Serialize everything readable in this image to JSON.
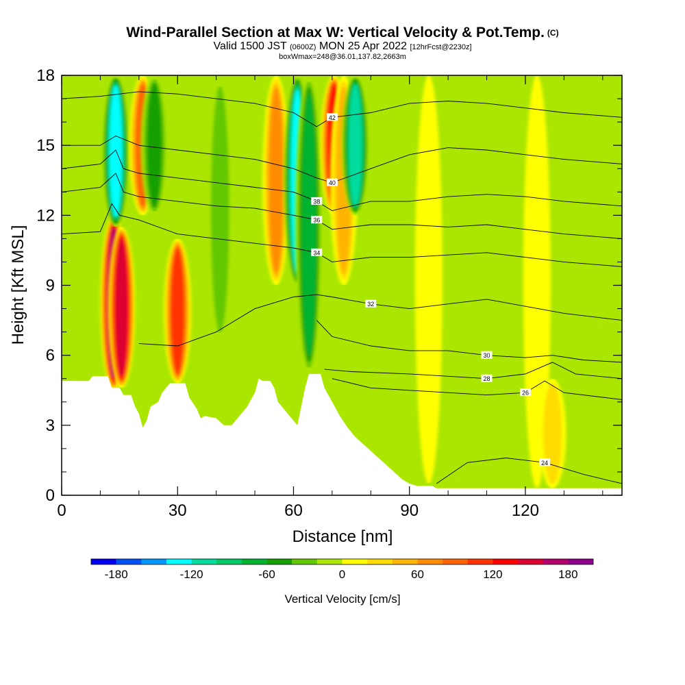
{
  "header": {
    "title": "Wind-Parallel Section at Max W: Vertical Velocity & Pot.Temp.",
    "copyright_mark": "(C)",
    "valid_prefix": "Valid 1500 JST",
    "valid_utc": "(0600Z)",
    "valid_date": "MON 25 Apr 2022",
    "forecast_info": "[12hrFcst@2230z]",
    "box_info": "boxWmax=248@36.01,137.82,2663m"
  },
  "chart_data": {
    "type": "heatmap",
    "xlabel": "Distance [nm]",
    "ylabel": "Height [Kft MSL]",
    "xlim": [
      0,
      145
    ],
    "ylim": [
      0,
      18
    ],
    "x_ticks": [
      0,
      30,
      60,
      90,
      120
    ],
    "y_ticks": [
      0,
      3,
      6,
      9,
      12,
      15,
      18
    ],
    "colorbar": {
      "label": "Vertical Velocity [cm/s]",
      "min": -200,
      "max": 200,
      "step": 20,
      "tick_labels": [
        -180,
        -120,
        -60,
        0,
        60,
        120,
        180
      ],
      "colors": [
        "#0000ee",
        "#0050f5",
        "#0096ff",
        "#00ffff",
        "#00dca0",
        "#00c864",
        "#00b432",
        "#14a000",
        "#64c800",
        "#aae600",
        "#ffff00",
        "#ffdc00",
        "#ffb400",
        "#ff8c00",
        "#ff6400",
        "#ff3200",
        "#ff0000",
        "#dc0032",
        "#b4006e",
        "#8c008c"
      ]
    },
    "terrain": [
      [
        0,
        4.9
      ],
      [
        7,
        4.9
      ],
      [
        8,
        5.1
      ],
      [
        12,
        5.1
      ],
      [
        13,
        4.6
      ],
      [
        15,
        4.6
      ],
      [
        16,
        4.3
      ],
      [
        18,
        4.3
      ],
      [
        19,
        3.8
      ],
      [
        20,
        3.5
      ],
      [
        21,
        2.9
      ],
      [
        22,
        3.2
      ],
      [
        23,
        3.8
      ],
      [
        25,
        4.0
      ],
      [
        26,
        4.4
      ],
      [
        28,
        4.8
      ],
      [
        30,
        4.8
      ],
      [
        32,
        4.8
      ],
      [
        33,
        4.2
      ],
      [
        35,
        3.7
      ],
      [
        36,
        3.3
      ],
      [
        37,
        3.4
      ],
      [
        40,
        3.3
      ],
      [
        42,
        3.0
      ],
      [
        44,
        3.0
      ],
      [
        46,
        3.4
      ],
      [
        48,
        3.8
      ],
      [
        50,
        4.4
      ],
      [
        51,
        5.0
      ],
      [
        52,
        4.9
      ],
      [
        54,
        4.9
      ],
      [
        55,
        4.6
      ],
      [
        56,
        4.0
      ],
      [
        58,
        3.6
      ],
      [
        59,
        3.4
      ],
      [
        60,
        3.2
      ],
      [
        61,
        3.0
      ],
      [
        62,
        3.8
      ],
      [
        63,
        4.6
      ],
      [
        64,
        5.2
      ],
      [
        67,
        5.2
      ],
      [
        68,
        4.6
      ],
      [
        70,
        4.0
      ],
      [
        72,
        3.4
      ],
      [
        74,
        2.9
      ],
      [
        76,
        2.5
      ],
      [
        78,
        2.2
      ],
      [
        80,
        1.9
      ],
      [
        82,
        1.6
      ],
      [
        84,
        1.3
      ],
      [
        86,
        1.0
      ],
      [
        88,
        0.7
      ],
      [
        90,
        0.5
      ],
      [
        92,
        0.4
      ],
      [
        96,
        0.4
      ],
      [
        97,
        0.3
      ],
      [
        145,
        0.3
      ]
    ],
    "w_bands": [
      {
        "x": 13.5,
        "y": [
          4.5,
          12.0
        ],
        "w": 180
      },
      {
        "x": 15.5,
        "y": [
          4.6,
          11.5
        ],
        "w": 160
      },
      {
        "x": 30,
        "y": [
          4.8,
          11.0
        ],
        "w": 120
      },
      {
        "x": 14,
        "y": [
          11.5,
          18.0
        ],
        "w": -130
      },
      {
        "x": 21,
        "y": [
          12.0,
          18.0
        ],
        "w": 90
      },
      {
        "x": 24,
        "y": [
          12.0,
          18.0
        ],
        "w": -60
      },
      {
        "x": 41,
        "y": [
          6.5,
          18.0
        ],
        "w": -40
      },
      {
        "x": 55.5,
        "y": [
          9.0,
          18.0
        ],
        "w": 80
      },
      {
        "x": 61,
        "y": [
          9.0,
          18.0
        ],
        "w": -140
      },
      {
        "x": 64,
        "y": [
          5.2,
          18.0
        ],
        "w": -80
      },
      {
        "x": 70.5,
        "y": [
          12.0,
          18.0
        ],
        "w": 140
      },
      {
        "x": 73,
        "y": [
          9.0,
          18.0
        ],
        "w": 60
      },
      {
        "x": 76,
        "y": [
          12.0,
          18.0
        ],
        "w": -110
      },
      {
        "x": 95,
        "y": [
          0.5,
          18.0
        ],
        "w": 20
      },
      {
        "x": 123,
        "y": [
          0.3,
          18.0
        ],
        "w": 20
      },
      {
        "x": 127,
        "y": [
          0.3,
          5.0
        ],
        "w": 40
      }
    ],
    "isentropes": [
      {
        "label": "24",
        "x": [
          97,
          105,
          115,
          125,
          135,
          145
        ],
        "y": [
          0.5,
          1.4,
          1.6,
          1.4,
          0.9,
          0.5
        ]
      },
      {
        "label": "26",
        "x": [
          70,
          80,
          90,
          100,
          110,
          120,
          125,
          130,
          140,
          145
        ],
        "y": [
          5.0,
          4.6,
          4.5,
          4.4,
          4.3,
          4.4,
          4.9,
          4.4,
          4.2,
          4.1
        ]
      },
      {
        "label": "28",
        "x": [
          68,
          75,
          90,
          100,
          110,
          120,
          127,
          133,
          145
        ],
        "y": [
          5.4,
          5.3,
          5.2,
          5.1,
          5.0,
          5.2,
          5.7,
          5.2,
          5.0
        ]
      },
      {
        "label": "30",
        "x": [
          66,
          70,
          80,
          90,
          100,
          110,
          120,
          127,
          135,
          145
        ],
        "y": [
          7.5,
          6.8,
          6.4,
          6.2,
          6.2,
          6.0,
          5.9,
          6.0,
          5.8,
          5.7
        ]
      },
      {
        "label": "32",
        "x": [
          20,
          30,
          40,
          50,
          60,
          66,
          70,
          80,
          90,
          100,
          110,
          120,
          130,
          145
        ],
        "y": [
          6.5,
          6.4,
          7.0,
          8.0,
          8.5,
          8.6,
          8.5,
          8.2,
          8.0,
          8.2,
          8.4,
          8.1,
          7.8,
          7.5
        ]
      },
      {
        "label": "34",
        "x": [
          0,
          10,
          13,
          15,
          20,
          30,
          40,
          50,
          60,
          66,
          70,
          80,
          90,
          100,
          110,
          120,
          130,
          145
        ],
        "y": [
          11.2,
          11.3,
          12.5,
          12.0,
          11.8,
          11.2,
          11.0,
          10.8,
          10.6,
          10.4,
          10.0,
          10.2,
          10.2,
          10.3,
          10.4,
          10.2,
          10.0,
          9.8
        ]
      },
      {
        "label": "36",
        "x": [
          0,
          10,
          14,
          16,
          20,
          30,
          40,
          50,
          60,
          66,
          70,
          80,
          90,
          100,
          110,
          120,
          130,
          145
        ],
        "y": [
          13.0,
          13.2,
          13.8,
          13.0,
          12.8,
          12.6,
          12.4,
          12.3,
          12.0,
          11.8,
          11.4,
          11.6,
          11.6,
          11.5,
          11.6,
          11.4,
          11.2,
          11.0
        ]
      },
      {
        "label": "38",
        "x": [
          0,
          10,
          14,
          16,
          20,
          30,
          40,
          50,
          60,
          66,
          70,
          80,
          90,
          100,
          110,
          120,
          130,
          145
        ],
        "y": [
          14.0,
          14.2,
          14.8,
          14.0,
          13.8,
          13.6,
          13.4,
          13.2,
          13.0,
          12.6,
          12.2,
          12.6,
          12.6,
          12.8,
          12.9,
          12.8,
          12.6,
          12.4
        ]
      },
      {
        "label": "40",
        "x": [
          0,
          10,
          14,
          20,
          30,
          40,
          50,
          60,
          66,
          70,
          80,
          90,
          100,
          110,
          120,
          130,
          145
        ],
        "y": [
          15.0,
          15.0,
          15.4,
          15.0,
          14.8,
          14.6,
          14.4,
          14.0,
          13.6,
          13.4,
          14.0,
          14.6,
          14.9,
          14.8,
          14.6,
          14.4,
          14.2
        ]
      },
      {
        "label": "42",
        "x": [
          0,
          10,
          20,
          30,
          40,
          50,
          60,
          66,
          70,
          80,
          90,
          100,
          110,
          120,
          130,
          145
        ],
        "y": [
          17.0,
          17.1,
          17.3,
          17.2,
          17.0,
          16.8,
          16.4,
          15.8,
          16.2,
          16.4,
          16.8,
          16.9,
          16.8,
          16.6,
          16.4,
          16.2
        ]
      }
    ]
  }
}
